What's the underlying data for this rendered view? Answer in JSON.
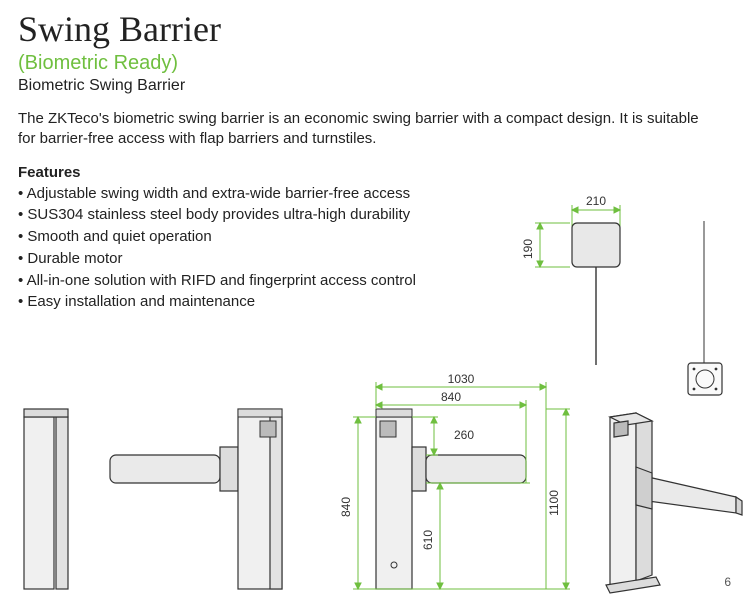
{
  "header": {
    "title": "Swing Barrier",
    "subtitle": "(Biometric Ready)",
    "subtitle2": "Biometric Swing Barrier"
  },
  "colors": {
    "accent_green": "#6fbf3f",
    "dim_stroke": "#6fbf3f",
    "body_text": "#222222",
    "drawing_stroke": "#333333",
    "drawing_fill": "#f2f2f2",
    "page_bg": "#ffffff"
  },
  "description": "The ZKTeco's biometric swing barrier is an economic swing barrier with a compact design. It is suitable for barrier-free access with flap barriers and turnstiles.",
  "features": {
    "heading": "Features",
    "items": [
      "Adjustable swing width and extra-wide barrier-free access",
      "SUS304 stainless steel body provides ultra-high durability",
      "Smooth and quiet operation",
      "Durable motor",
      "All-in-one solution with RIFD and fingerprint access control",
      "Easy installation and maintenance"
    ]
  },
  "dimensions": {
    "top_width_label": "210",
    "top_height_label": "190",
    "front_full_width_label": "1030",
    "front_inner_width_label": "840",
    "front_post_height_label": "840",
    "front_arm_h_label": "260",
    "front_arm_to_floor_label": "610",
    "front_total_height_label": "1100",
    "unit": "mm_implied",
    "drawing_colors": {
      "dim_line": "#6fbf3f",
      "dim_text": "#333333",
      "outline": "#333333",
      "fill": "#f0f0f0"
    },
    "line_widths": {
      "outline": 1.2,
      "dim": 1
    },
    "font_size_dim_pt": 11
  },
  "page_number": "6"
}
